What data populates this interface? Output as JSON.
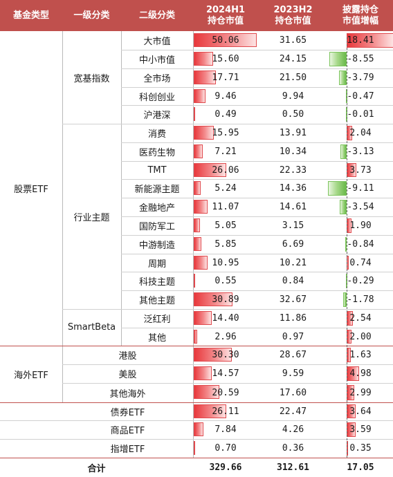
{
  "header": {
    "fund_type": "基金类型",
    "level1": "一级分类",
    "level2": "二级分类",
    "h2024": "2024H1\n持仓市值",
    "h2023": "2023H2\n持仓市值",
    "growth": "披露持仓\n市值增幅"
  },
  "fund_types": [
    {
      "label": "股票ETF"
    },
    {
      "label": "海外ETF"
    }
  ],
  "level1_groups": [
    {
      "label": "宽基指数"
    },
    {
      "label": "行业主题"
    },
    {
      "label": "SmartBeta"
    },
    {
      "label": "债券ETF"
    },
    {
      "label": "商品ETF"
    },
    {
      "label": "指增ETF"
    }
  ],
  "rows": [
    {
      "name": "大市值",
      "h2024": "50.06",
      "h2023": "31.65",
      "growth": "18.41"
    },
    {
      "name": "中小市值",
      "h2024": "15.60",
      "h2023": "24.15",
      "growth": "-8.55"
    },
    {
      "name": "全市场",
      "h2024": "17.71",
      "h2023": "21.50",
      "growth": "-3.79"
    },
    {
      "name": "科创创业",
      "h2024": "9.46",
      "h2023": "9.94",
      "growth": "-0.47"
    },
    {
      "name": "沪港深",
      "h2024": "0.49",
      "h2023": "0.50",
      "growth": "-0.01"
    },
    {
      "name": "消费",
      "h2024": "15.95",
      "h2023": "13.91",
      "growth": "2.04"
    },
    {
      "name": "医药生物",
      "h2024": "7.21",
      "h2023": "10.34",
      "growth": "-3.13"
    },
    {
      "name": "TMT",
      "h2024": "26.06",
      "h2023": "22.33",
      "growth": "3.73"
    },
    {
      "name": "新能源主题",
      "h2024": "5.24",
      "h2023": "14.36",
      "growth": "-9.11"
    },
    {
      "name": "金融地产",
      "h2024": "11.07",
      "h2023": "14.61",
      "growth": "-3.54"
    },
    {
      "name": "国防军工",
      "h2024": "5.05",
      "h2023": "3.15",
      "growth": "1.90"
    },
    {
      "name": "中游制造",
      "h2024": "5.85",
      "h2023": "6.69",
      "growth": "-0.84"
    },
    {
      "name": "周期",
      "h2024": "10.95",
      "h2023": "10.21",
      "growth": "0.74"
    },
    {
      "name": "科技主题",
      "h2024": "0.55",
      "h2023": "0.84",
      "growth": "-0.29"
    },
    {
      "name": "其他主题",
      "h2024": "30.89",
      "h2023": "32.67",
      "growth": "-1.78"
    },
    {
      "name": "泛红利",
      "h2024": "14.40",
      "h2023": "11.86",
      "growth": "2.54"
    },
    {
      "name": "其他",
      "h2024": "2.96",
      "h2023": "0.97",
      "growth": "2.00"
    },
    {
      "name": "港股",
      "h2024": "30.30",
      "h2023": "28.67",
      "growth": "1.63"
    },
    {
      "name": "美股",
      "h2024": "14.57",
      "h2023": "9.59",
      "growth": "4.98"
    },
    {
      "name": "其他海外",
      "h2024": "20.59",
      "h2023": "17.60",
      "growth": "2.99"
    },
    {
      "name": "",
      "h2024": "26.11",
      "h2023": "22.47",
      "growth": "3.64"
    },
    {
      "name": "",
      "h2024": "7.84",
      "h2023": "4.26",
      "growth": "3.59"
    },
    {
      "name": "",
      "h2024": "0.70",
      "h2023": "0.36",
      "growth": "0.35"
    }
  ],
  "total": {
    "label": "合计",
    "h2024": "329.66",
    "h2023": "312.61",
    "growth": "17.05"
  },
  "colors": {
    "header_bg": "#c0504d",
    "pos_bar": "#e8383c",
    "neg_bar": "#69b949"
  }
}
